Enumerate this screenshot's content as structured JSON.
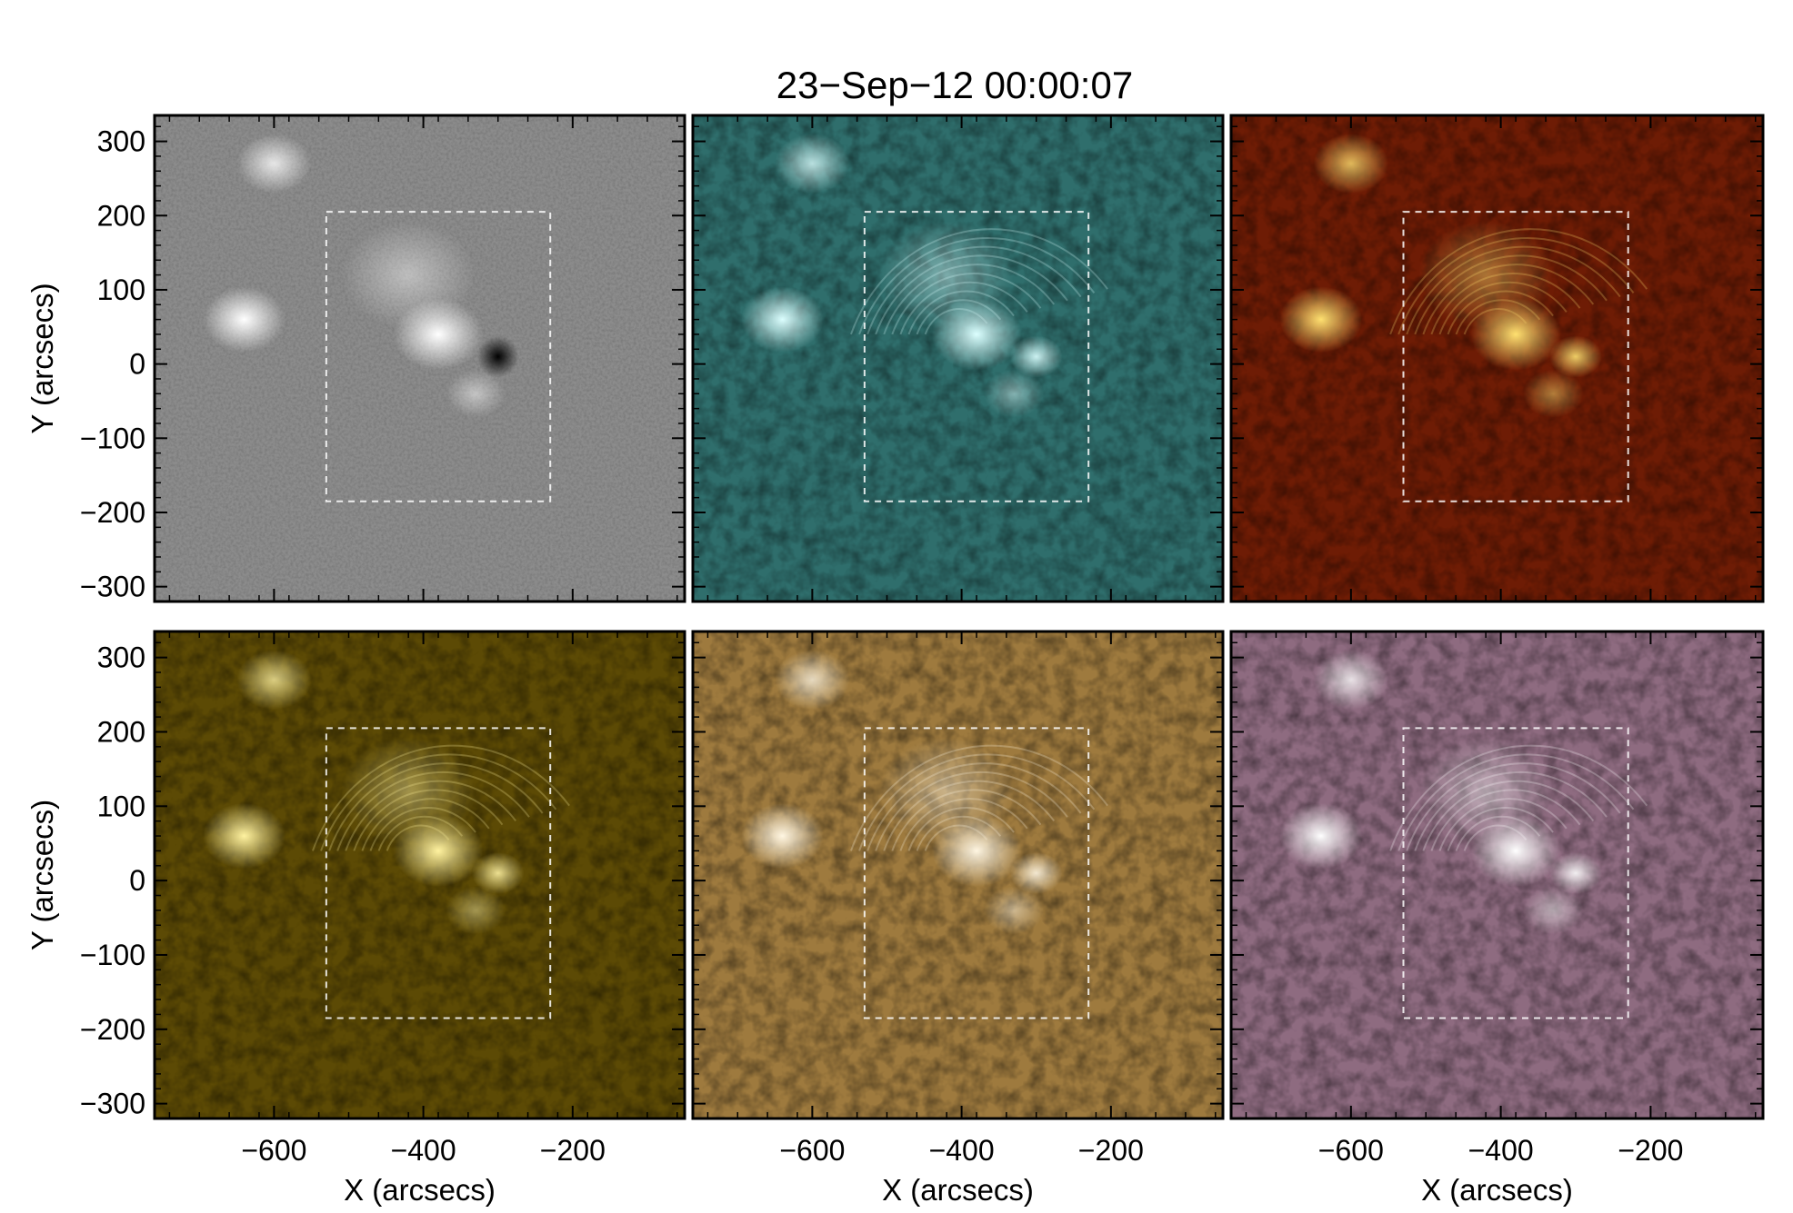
{
  "figure": {
    "title": "23−Sep−12 00:00:07",
    "xlabel": "X (arcsecs)",
    "ylabel": "Y (arcsecs)",
    "x_ticks": [
      "−600",
      "−400",
      "−200"
    ],
    "y_ticks": [
      "300",
      "200",
      "100",
      "0",
      "−100",
      "−200",
      "−300"
    ],
    "x_range": [
      -760,
      -50
    ],
    "y_range": [
      -320,
      335
    ],
    "roi_box": {
      "x": [
        -530,
        -230
      ],
      "y": [
        -185,
        205
      ]
    },
    "panels": [
      {
        "id": "hmi-magnetogram",
        "colormap": "gray",
        "base": "#8c8c8c",
        "hi": "#ffffff",
        "lo": "#000000"
      },
      {
        "id": "aia-teal",
        "colormap": "teal",
        "base": "#2f6e6c",
        "hi": "#dcffff",
        "lo": "#0f2d2c"
      },
      {
        "id": "aia-red",
        "colormap": "red",
        "base": "#6e1c05",
        "hi": "#ffe070",
        "lo": "#1a0400"
      },
      {
        "id": "aia-yellow",
        "colormap": "yellow",
        "base": "#5c4a05",
        "hi": "#fff2a0",
        "lo": "#0e0a00"
      },
      {
        "id": "aia-brown",
        "colormap": "brown",
        "base": "#9e7a3e",
        "hi": "#fff6e2",
        "lo": "#3a2208"
      },
      {
        "id": "aia-purple",
        "colormap": "purple",
        "base": "#8e6b80",
        "hi": "#ffffff",
        "lo": "#2e1526"
      }
    ]
  }
}
